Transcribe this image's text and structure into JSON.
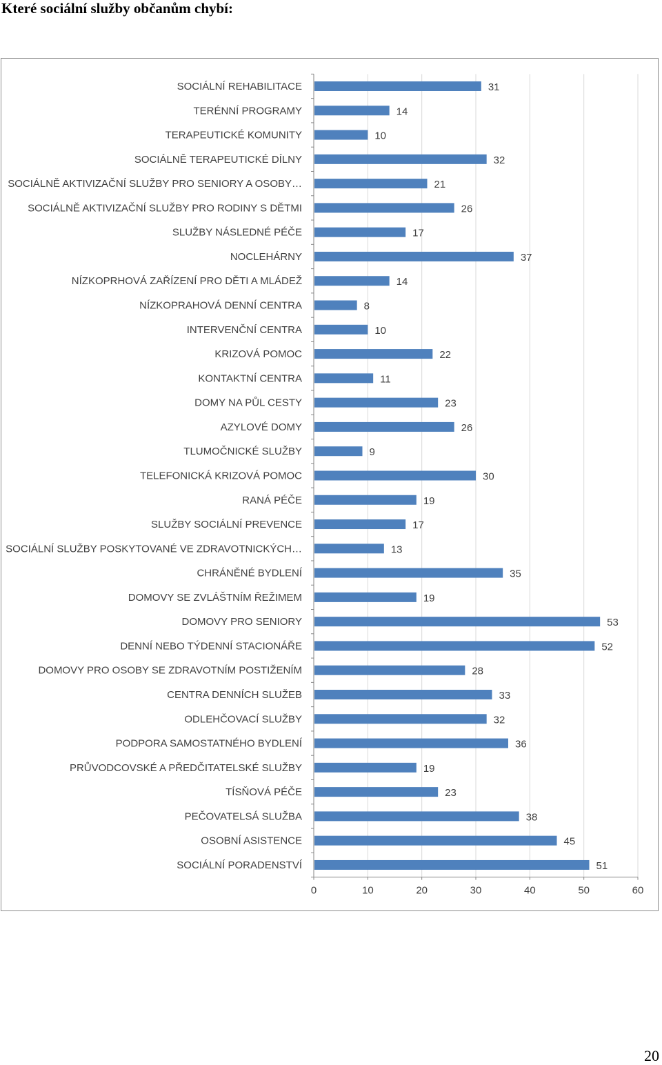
{
  "page": {
    "heading": "Které sociální služby občanům chybí:",
    "page_number": "20"
  },
  "colors": {
    "bar": "#4f81bd",
    "grid": "#d9d9d9",
    "axis": "#868686",
    "text": "#404040"
  },
  "chart_data": {
    "type": "bar",
    "orientation": "horizontal",
    "categories": [
      "SOCIÁLNÍ REHABILITACE",
      "TERÉNNÍ PROGRAMY",
      "TERAPEUTICKÉ KOMUNITY",
      "SOCIÁLNĚ TERAPEUTICKÉ DÍLNY",
      "SOCIÁLNĚ AKTIVIZAČNÍ SLUŽBY PRO SENIORY A OSOBY…",
      "SOCIÁLNĚ AKTIVIZAČNÍ SLUŽBY PRO RODINY S DĚTMI",
      "SLUŽBY NÁSLEDNÉ PÉČE",
      "NOCLEHÁRNY",
      "NÍZKOPRHOVÁ ZAŘÍZENÍ PRO DĚTI A MLÁDEŽ",
      "NÍZKOPRAHOVÁ DENNÍ CENTRA",
      "INTERVENČNÍ CENTRA",
      "KRIZOVÁ POMOC",
      "KONTAKTNÍ CENTRA",
      "DOMY NA PŮL CESTY",
      "AZYLOVÉ DOMY",
      "TLUMOČNICKÉ SLUŽBY",
      "TELEFONICKÁ KRIZOVÁ POMOC",
      "RANÁ PÉČE",
      "SLUŽBY SOCIÁLNÍ PREVENCE",
      "SOCIÁLNÍ SLUŽBY POSKYTOVANÉ VE ZDRAVOTNICKÝCH…",
      "CHRÁNĚNÉ BYDLENÍ",
      "DOMOVY SE ZVLÁŠTNÍM ŘEŽIMEM",
      "DOMOVY PRO SENIORY",
      "DENNÍ NEBO TÝDENNÍ STACIONÁŘE",
      "DOMOVY PRO OSOBY SE ZDRAVOTNÍM POSTIŽENÍM",
      "CENTRA DENNÍCH SLUŽEB",
      "ODLEHČOVACÍ SLUŽBY",
      "PODPORA SAMOSTATNÉHO BYDLENÍ",
      "PRŮVODCOVSKÉ A PŘEDČITATELSKÉ SLUŽBY",
      "TÍSŇOVÁ PÉČE",
      "PEČOVATELSÁ SLUŽBA",
      "OSOBNÍ ASISTENCE",
      "SOCIÁLNÍ PORADENSTVÍ"
    ],
    "values": [
      31,
      14,
      10,
      32,
      21,
      26,
      17,
      37,
      14,
      8,
      10,
      22,
      11,
      23,
      26,
      9,
      30,
      19,
      17,
      13,
      35,
      19,
      53,
      52,
      28,
      33,
      32,
      36,
      19,
      23,
      38,
      45,
      51
    ],
    "xlim": [
      0,
      60
    ],
    "xticks": [
      0,
      10,
      20,
      30,
      40,
      50,
      60
    ],
    "grid": true,
    "legend": "none",
    "data_labels": true
  }
}
